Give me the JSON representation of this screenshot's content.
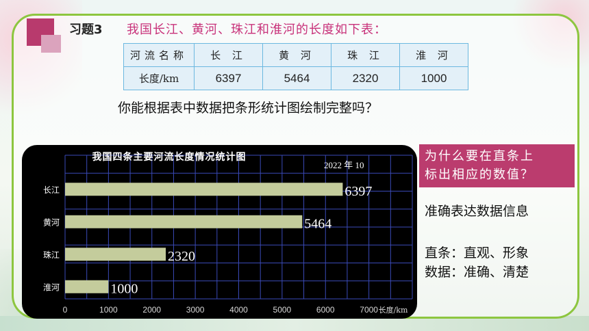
{
  "exercise": {
    "label": "习题3",
    "question": "我国长江、黄河、珠江和淮河的长度如下表：",
    "prompt": "你能根据表中数据把条形统计图绘制完整吗？"
  },
  "table": {
    "header": [
      "河流名称",
      "长 江",
      "黄 河",
      "珠 江",
      "淮 河"
    ],
    "row": [
      "长度/km",
      "6397",
      "5464",
      "2320",
      "1000"
    ]
  },
  "callout": {
    "line1": "为什么要在直条上",
    "line2": "标出相应的数值？"
  },
  "answers": {
    "main": "准确表达数据信息",
    "line1": "直条：直观、形象",
    "line2": "数据：准确、清楚"
  },
  "colors": {
    "frame": "#8dc63f",
    "accent": "#b83a6d",
    "question_text": "#c8327a",
    "bar": "#c4cc9c",
    "grid": "#3a4ab8"
  },
  "chart_data": {
    "type": "bar",
    "orientation": "horizontal",
    "title": "我国四条主要河流长度情况统计图",
    "date": "2022 年 10",
    "categories": [
      "长江",
      "黄河",
      "珠江",
      "淮河"
    ],
    "values": [
      6397,
      5464,
      2320,
      1000
    ],
    "xlabel": "长度/km",
    "xlim": [
      0,
      8000
    ],
    "xticks": [
      0,
      1000,
      2000,
      3000,
      4000,
      5000,
      6000,
      7000
    ],
    "grid": true
  }
}
